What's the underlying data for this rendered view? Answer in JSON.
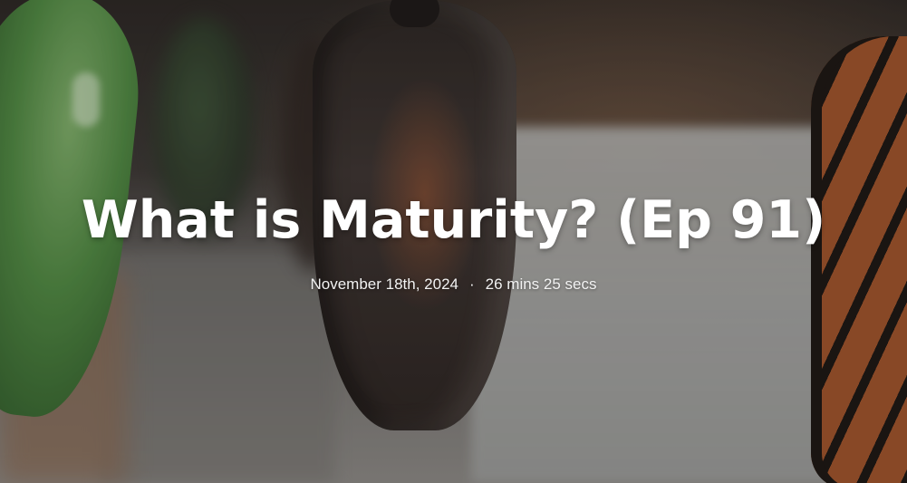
{
  "episode": {
    "title": "What is Maturity? (Ep 91)",
    "date": "November 18th, 2024",
    "separator": "·",
    "duration": "26 mins 25 secs"
  }
}
